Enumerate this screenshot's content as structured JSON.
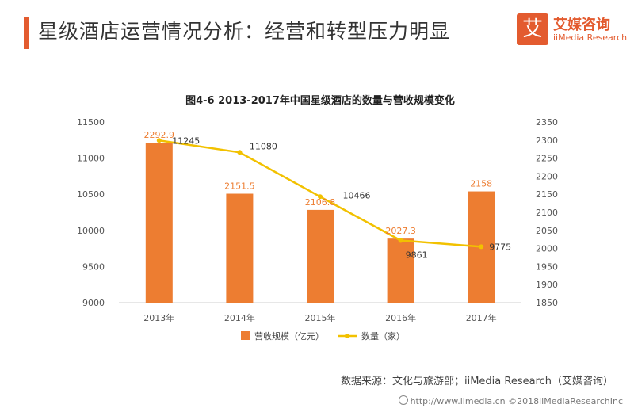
{
  "header": {
    "title": "星级酒店运营情况分析：经营和转型压力明显",
    "logo_mark": "艾",
    "logo_cn": "艾媒咨询",
    "logo_en": "iiMedia Research"
  },
  "colors": {
    "accent": "#e35b2f",
    "bar": "#ed7d31",
    "line": "#f2c100"
  },
  "chart_data": {
    "type": "bar",
    "title": "图4-6 2013-2017年中国星级酒店的数量与营收规模变化",
    "categories": [
      "2013年",
      "2014年",
      "2015年",
      "2016年",
      "2017年"
    ],
    "series": [
      {
        "name": "营收规模（亿元）",
        "type": "bar",
        "axis": "right",
        "values": [
          2292.9,
          2151.5,
          2106.8,
          2027.3,
          2158
        ]
      },
      {
        "name": "数量（家）",
        "type": "line",
        "axis": "left",
        "values": [
          11245,
          11080,
          10466,
          9861,
          9775
        ]
      }
    ],
    "left_axis": {
      "min": 9000,
      "max": 11500,
      "step": 500,
      "ticks": [
        9000,
        9500,
        10000,
        10500,
        11000,
        11500
      ]
    },
    "right_axis": {
      "min": 1850,
      "max": 2350,
      "step": 50,
      "ticks": [
        1850,
        1900,
        1950,
        2000,
        2050,
        2100,
        2150,
        2200,
        2250,
        2300,
        2350
      ]
    },
    "legend_position": "bottom",
    "grid": false
  },
  "footer": {
    "source": "数据来源：文化与旅游部；iiMedia Research（艾媒咨询）",
    "watermark": "http://www.iimedia.cn  ©2018iiMediaResearchInc"
  }
}
